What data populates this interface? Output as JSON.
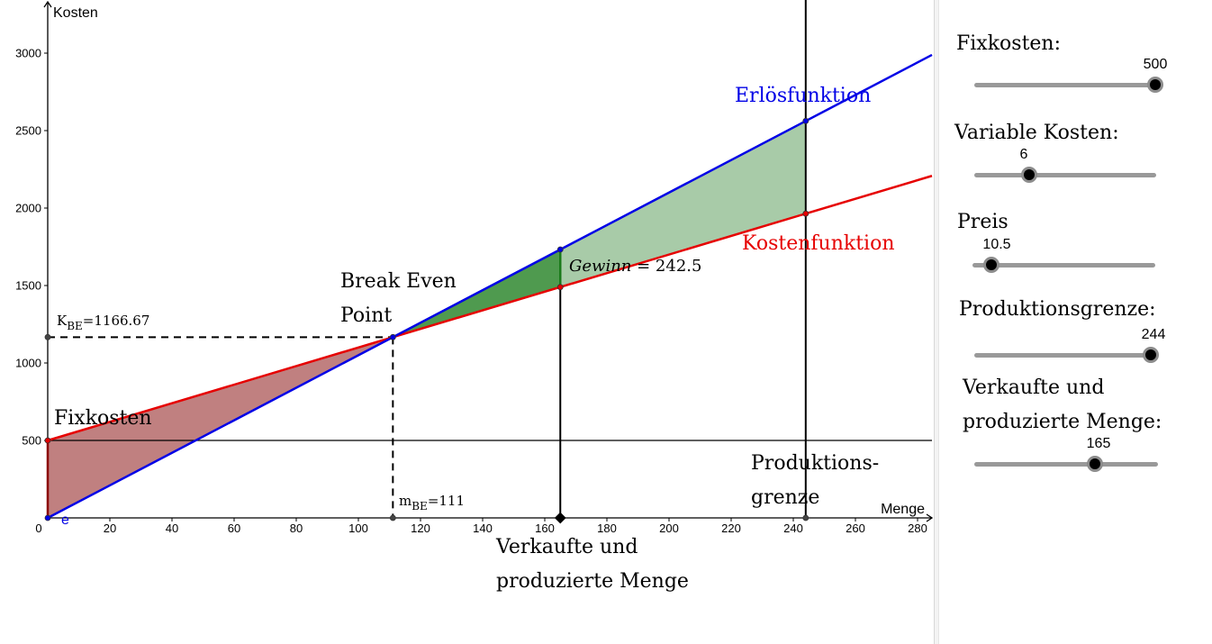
{
  "chart_data": {
    "type": "line",
    "xlabel": "Menge",
    "ylabel": "Kosten",
    "xlim": [
      0,
      285
    ],
    "ylim": [
      0,
      3200
    ],
    "x_ticks": [
      0,
      20,
      40,
      60,
      80,
      100,
      120,
      140,
      160,
      180,
      200,
      220,
      240,
      260,
      280
    ],
    "y_ticks": [
      500,
      1000,
      1500,
      2000,
      2500,
      3000
    ],
    "series": [
      {
        "name": "Erlösfunktion",
        "color": "#0000e6",
        "intercept": 0,
        "slope": 10.5
      },
      {
        "name": "Kostenfunktion",
        "color": "#e60000",
        "intercept": 500,
        "slope": 6
      }
    ],
    "fixed_cost_line": 500,
    "fixed_cost_label": "Fixkosten",
    "break_even": {
      "m": 111.11,
      "K": 1166.67,
      "m_label": "111",
      "K_label": "1166.67"
    },
    "break_even_label_1": "Break Even",
    "break_even_label_2": "Point",
    "quantity": 165,
    "gewinn_label": "Gewinn",
    "gewinn_value": "242.5",
    "production_limit": 244,
    "production_label_1": "Produktions-",
    "production_label_2": "grenze",
    "quantity_label_1": "Verkaufte und",
    "quantity_label_2": "produzierte Menge",
    "origin_point_label": "e",
    "colors": {
      "loss_fill": "#c08080",
      "profit_fill": "#a8cba8",
      "profit_current": "#4f9a4f"
    }
  },
  "sliders": [
    {
      "label": "Fixkosten:",
      "value": "500",
      "fraction": 1.0
    },
    {
      "label": "Variable Kosten:",
      "value": "6",
      "fraction": 0.3
    },
    {
      "label": "Preis",
      "value": "10.5",
      "fraction": 0.1
    },
    {
      "label": "Produktionsgrenze:",
      "value": "244",
      "fraction": 0.98
    },
    {
      "label": "Verkaufte und",
      "label2": "produzierte Menge:",
      "value": "165",
      "fraction": 0.65
    }
  ]
}
